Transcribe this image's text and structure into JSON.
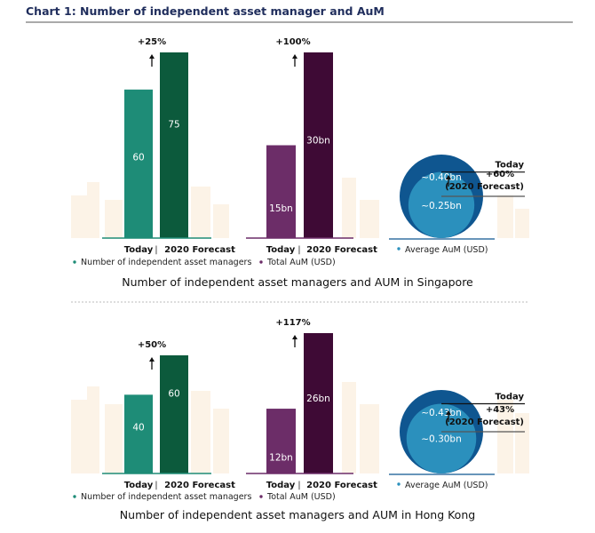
{
  "title": "Chart 1: Number of independent asset manager and AuM",
  "colors": {
    "title": "#1f2d5c",
    "managers_today": "#1e8c77",
    "managers_forecast": "#0c5a3c",
    "aum_today": "#6c2d68",
    "aum_forecast": "#3e0a35",
    "avg_forecast": "#0f5690",
    "avg_today": "#2b90bd",
    "skyline": "#fbeedd"
  },
  "chart_data": [
    {
      "type": "bar",
      "region": "Singapore",
      "subtitle": "Number of independent asset managers and AUM in Singapore",
      "panels": [
        {
          "id": "managers",
          "legend": "Number of independent asset managers",
          "categories": [
            "Today",
            "2020 Forecast"
          ],
          "values": [
            60,
            75
          ],
          "value_labels": [
            "60",
            "75"
          ],
          "change_label": "+25%"
        },
        {
          "id": "aum",
          "legend": "Total AuM (USD)",
          "categories": [
            "Today",
            "2020 Forecast"
          ],
          "values": [
            15,
            30
          ],
          "value_labels": [
            "15bn",
            "30bn"
          ],
          "unit": "bn USD",
          "change_label": "+100%"
        },
        {
          "id": "avg",
          "type": "bubble",
          "legend": "Average AuM (USD)",
          "today_value": 0.25,
          "forecast_value": 0.4,
          "today_label": "~0.25bn",
          "forecast_label": "~0.40bn",
          "today_marker": "Today",
          "change_label": "+60%",
          "forecast_marker": "(2020 Forecast)"
        }
      ]
    },
    {
      "type": "bar",
      "region": "Hong Kong",
      "subtitle": "Number of independent asset managers and AUM in Hong Kong",
      "panels": [
        {
          "id": "managers",
          "legend": "Number of independent asset managers",
          "categories": [
            "Today",
            "2020 Forecast"
          ],
          "values": [
            40,
            60
          ],
          "value_labels": [
            "40",
            "60"
          ],
          "change_label": "+50%"
        },
        {
          "id": "aum",
          "legend": "Total AuM (USD)",
          "categories": [
            "Today",
            "2020 Forecast"
          ],
          "values": [
            12,
            26
          ],
          "value_labels": [
            "12bn",
            "26bn"
          ],
          "unit": "bn USD",
          "change_label": "+117%"
        },
        {
          "id": "avg",
          "type": "bubble",
          "legend": "Average AuM (USD)",
          "today_value": 0.3,
          "forecast_value": 0.43,
          "today_label": "~0.30bn",
          "forecast_label": "~0.43bn",
          "today_marker": "Today",
          "change_label": "+43%",
          "forecast_marker": "(2020 Forecast)"
        }
      ]
    }
  ],
  "axis_separator": "|"
}
